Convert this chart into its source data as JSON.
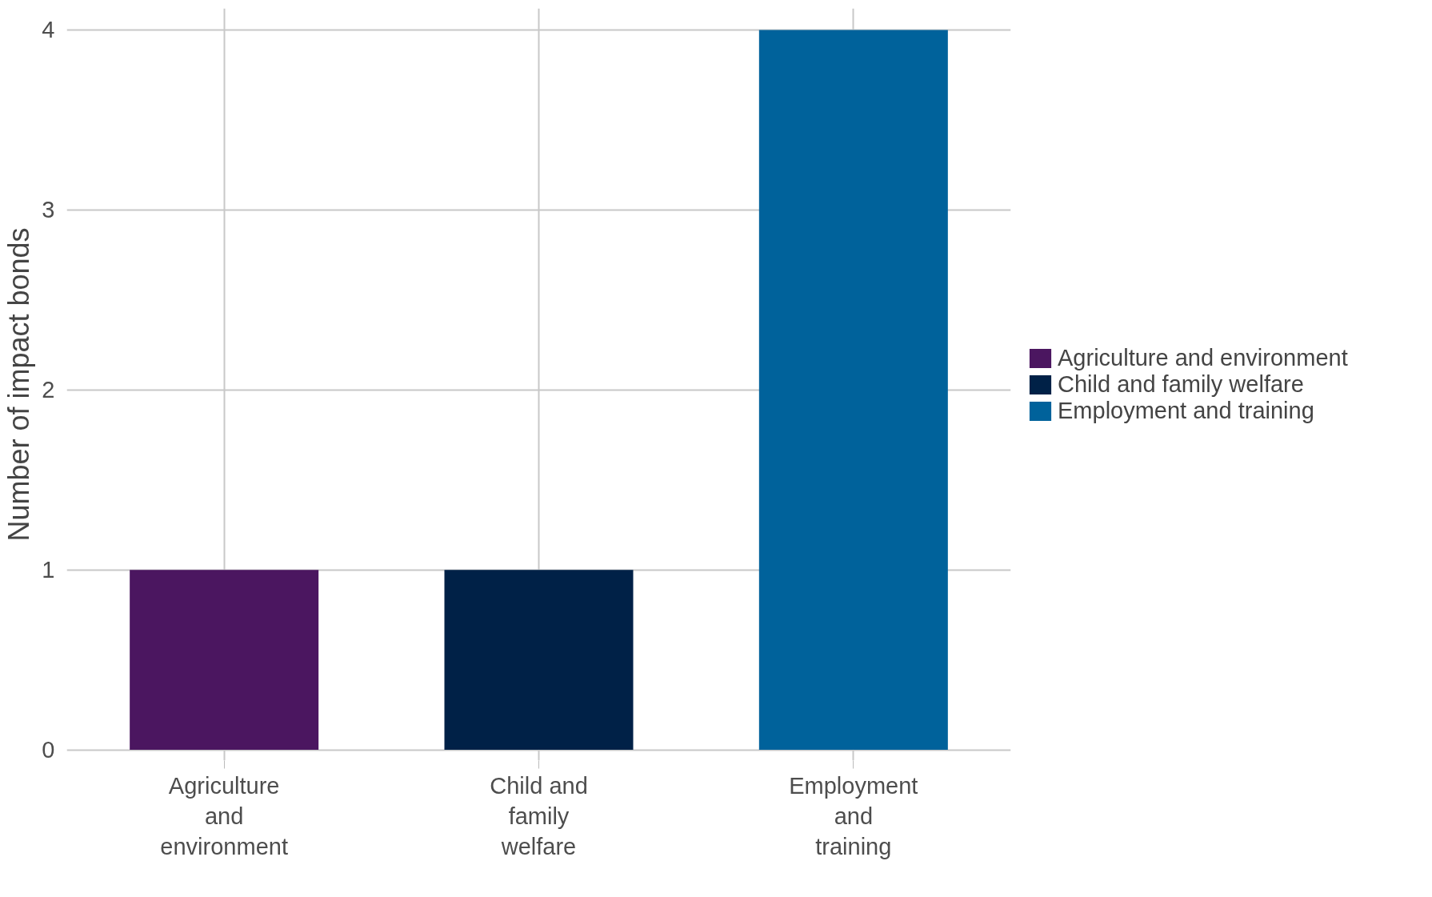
{
  "chart_data": {
    "type": "bar",
    "categories": [
      "Agriculture and environment",
      "Child and family welfare",
      "Employment and training"
    ],
    "series": [
      {
        "name": "Agriculture and environment",
        "color": "#4b1660",
        "values": [
          1,
          null,
          null
        ]
      },
      {
        "name": "Child and family welfare",
        "color": "#002147",
        "values": [
          null,
          1,
          null
        ]
      },
      {
        "name": "Employment and training",
        "color": "#00629b",
        "values": [
          null,
          null,
          4
        ]
      }
    ],
    "ylabel": "Number of impact bonds",
    "ylim": [
      -0.06,
      4.12
    ],
    "yticks": [
      0,
      1,
      2,
      3,
      4
    ],
    "grid": true,
    "legend": "right"
  }
}
